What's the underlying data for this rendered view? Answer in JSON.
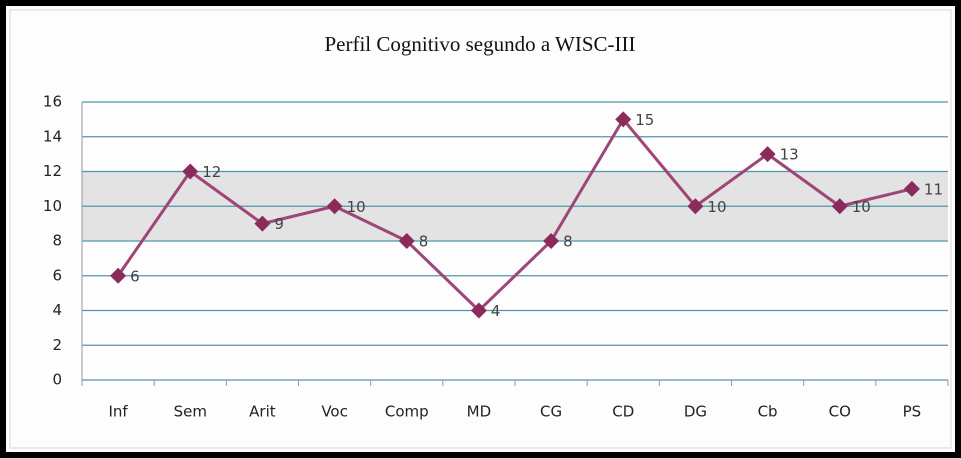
{
  "chart_data": {
    "type": "line",
    "title": "Perfil Cognitivo segundo a WISC-III",
    "categories": [
      "Inf",
      "Sem",
      "Arit",
      "Voc",
      "Comp",
      "MD",
      "CG",
      "CD",
      "DG",
      "Cb",
      "CO",
      "PS"
    ],
    "series": [
      {
        "color": "#9e4677",
        "marker_color": "#8a2b5c",
        "values": [
          6,
          12,
          9,
          10,
          8,
          4,
          8,
          15,
          10,
          13,
          10,
          11
        ]
      }
    ],
    "ylim": [
      0,
      16
    ],
    "yticks": [
      0,
      2,
      4,
      6,
      8,
      10,
      12,
      14,
      16
    ],
    "grid": true,
    "shaded_band": [
      8,
      12
    ],
    "band_color": "#e3e3e3",
    "grid_color": "#4f98a6"
  }
}
